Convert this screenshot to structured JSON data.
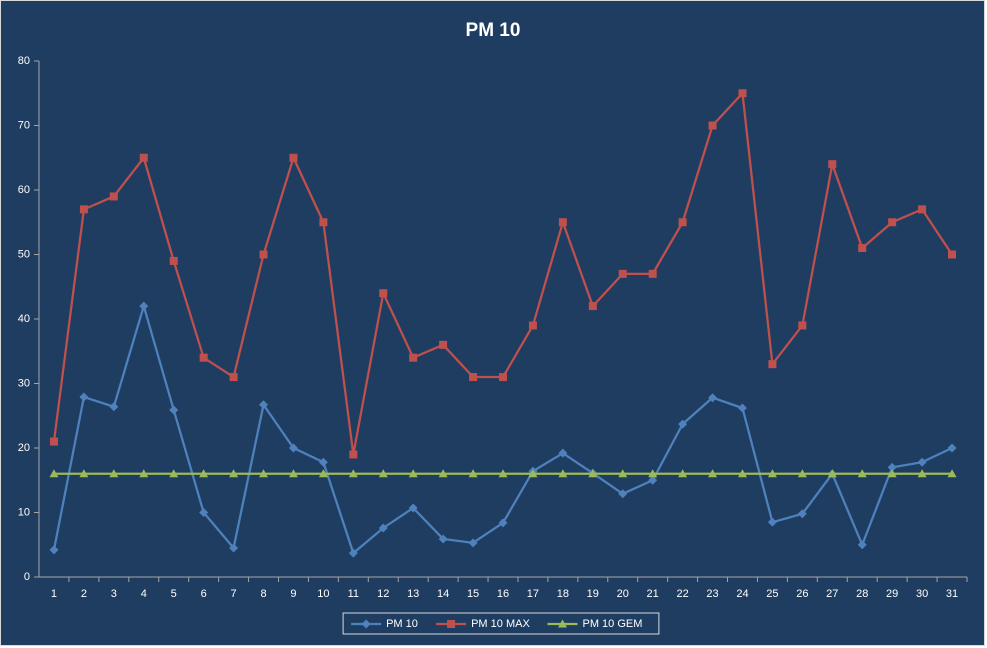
{
  "chart_data": {
    "type": "line",
    "title": "PM 10",
    "categories": [
      "1",
      "2",
      "3",
      "4",
      "5",
      "6",
      "7",
      "8",
      "9",
      "10",
      "11",
      "12",
      "13",
      "14",
      "15",
      "16",
      "17",
      "18",
      "19",
      "20",
      "21",
      "22",
      "23",
      "24",
      "25",
      "26",
      "27",
      "28",
      "29",
      "30",
      "31"
    ],
    "series": [
      {
        "name": "PM 10",
        "color": "#4f81bd",
        "marker": "diamond",
        "values": [
          4.2,
          27.9,
          26.4,
          42,
          25.9,
          10,
          4.5,
          26.7,
          20,
          17.8,
          3.7,
          7.6,
          10.7,
          5.9,
          5.3,
          8.4,
          16.4,
          19.2,
          16.1,
          12.9,
          15,
          23.7,
          27.8,
          26.2,
          8.5,
          9.8,
          16,
          5,
          17,
          17.8,
          20
        ]
      },
      {
        "name": "PM 10 MAX",
        "color": "#c0504d",
        "marker": "square",
        "values": [
          21,
          57,
          59,
          65,
          49,
          34,
          31,
          50,
          65,
          55,
          19,
          44,
          34,
          36,
          31,
          31,
          39,
          55,
          42,
          47,
          47,
          55,
          70,
          75,
          33,
          39,
          64,
          51,
          55,
          57,
          50
        ]
      },
      {
        "name": "PM 10 GEM",
        "color": "#9bbb59",
        "marker": "triangle",
        "values": [
          16,
          16,
          16,
          16,
          16,
          16,
          16,
          16,
          16,
          16,
          16,
          16,
          16,
          16,
          16,
          16,
          16,
          16,
          16,
          16,
          16,
          16,
          16,
          16,
          16,
          16,
          16,
          16,
          16,
          16,
          16
        ]
      }
    ],
    "ylim": [
      0,
      80
    ],
    "yticks": [
      0,
      10,
      20,
      30,
      40,
      50,
      60,
      70,
      80
    ],
    "grid": false,
    "legend": "bottom"
  }
}
